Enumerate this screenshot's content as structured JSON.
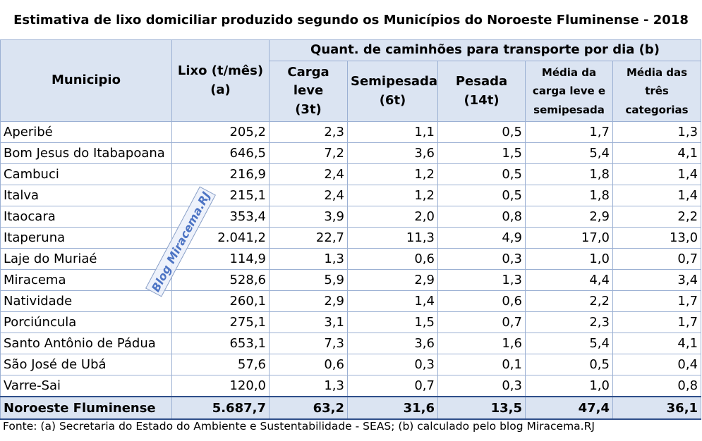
{
  "title": "Estimativa de lixo domiciliar produzido segundo os Municípios do Noroeste Fluminense - 2018",
  "headers": {
    "municipio": "Municipio",
    "lixo_line1": "Lixo (t/mês)",
    "lixo_line2": "(a)",
    "group": "Quant. de caminhões para transporte por dia (b)",
    "leve_line1": "Carga leve",
    "leve_line2": "(3t)",
    "semi_line1": "Semipesada",
    "semi_line2": "(6t)",
    "pesada_line1": "Pesada",
    "pesada_line2": "(14t)",
    "media_ls_line1": "Média da",
    "media_ls_line2": "carga leve e",
    "media_ls_line3": "semipesada",
    "media_3_line1": "Média das",
    "media_3_line2": "três",
    "media_3_line3": "categorias"
  },
  "rows": [
    [
      "Aperibé",
      "205,2",
      "2,3",
      "1,1",
      "0,5",
      "1,7",
      "1,3"
    ],
    [
      "Bom Jesus do Itabapoana",
      "646,5",
      "7,2",
      "3,6",
      "1,5",
      "5,4",
      "4,1"
    ],
    [
      "Cambuci",
      "216,9",
      "2,4",
      "1,2",
      "0,5",
      "1,8",
      "1,4"
    ],
    [
      "Italva",
      "215,1",
      "2,4",
      "1,2",
      "0,5",
      "1,8",
      "1,4"
    ],
    [
      "Itaocara",
      "353,4",
      "3,9",
      "2,0",
      "0,8",
      "2,9",
      "2,2"
    ],
    [
      "Itaperuna",
      "2.041,2",
      "22,7",
      "11,3",
      "4,9",
      "17,0",
      "13,0"
    ],
    [
      "Laje do Muriaé",
      "114,9",
      "1,3",
      "0,6",
      "0,3",
      "1,0",
      "0,7"
    ],
    [
      "Miracema",
      "528,6",
      "5,9",
      "2,9",
      "1,3",
      "4,4",
      "3,4"
    ],
    [
      "Natividade",
      "260,1",
      "2,9",
      "1,4",
      "0,6",
      "2,2",
      "1,7"
    ],
    [
      "Porciúncula",
      "275,1",
      "3,1",
      "1,5",
      "0,7",
      "2,3",
      "1,7"
    ],
    [
      "Santo Antônio de Pádua",
      "653,1",
      "7,3",
      "3,6",
      "1,6",
      "5,4",
      "4,1"
    ],
    [
      "São José de Ubá",
      "57,6",
      "0,6",
      "0,3",
      "0,1",
      "0,5",
      "0,4"
    ],
    [
      "Varre-Sai",
      "120,0",
      "1,3",
      "0,7",
      "0,3",
      "1,0",
      "0,8"
    ]
  ],
  "total": [
    "Noroeste Fluminense",
    "5.687,7",
    "63,2",
    "31,6",
    "13,5",
    "47,4",
    "36,1"
  ],
  "watermark": "Blog Miracema.RJ",
  "source": "Fonte: (a) Secretaria do Estado do Ambiente e Sustentabilidade - SEAS; (b) calculado pelo blog Miracema.RJ"
}
